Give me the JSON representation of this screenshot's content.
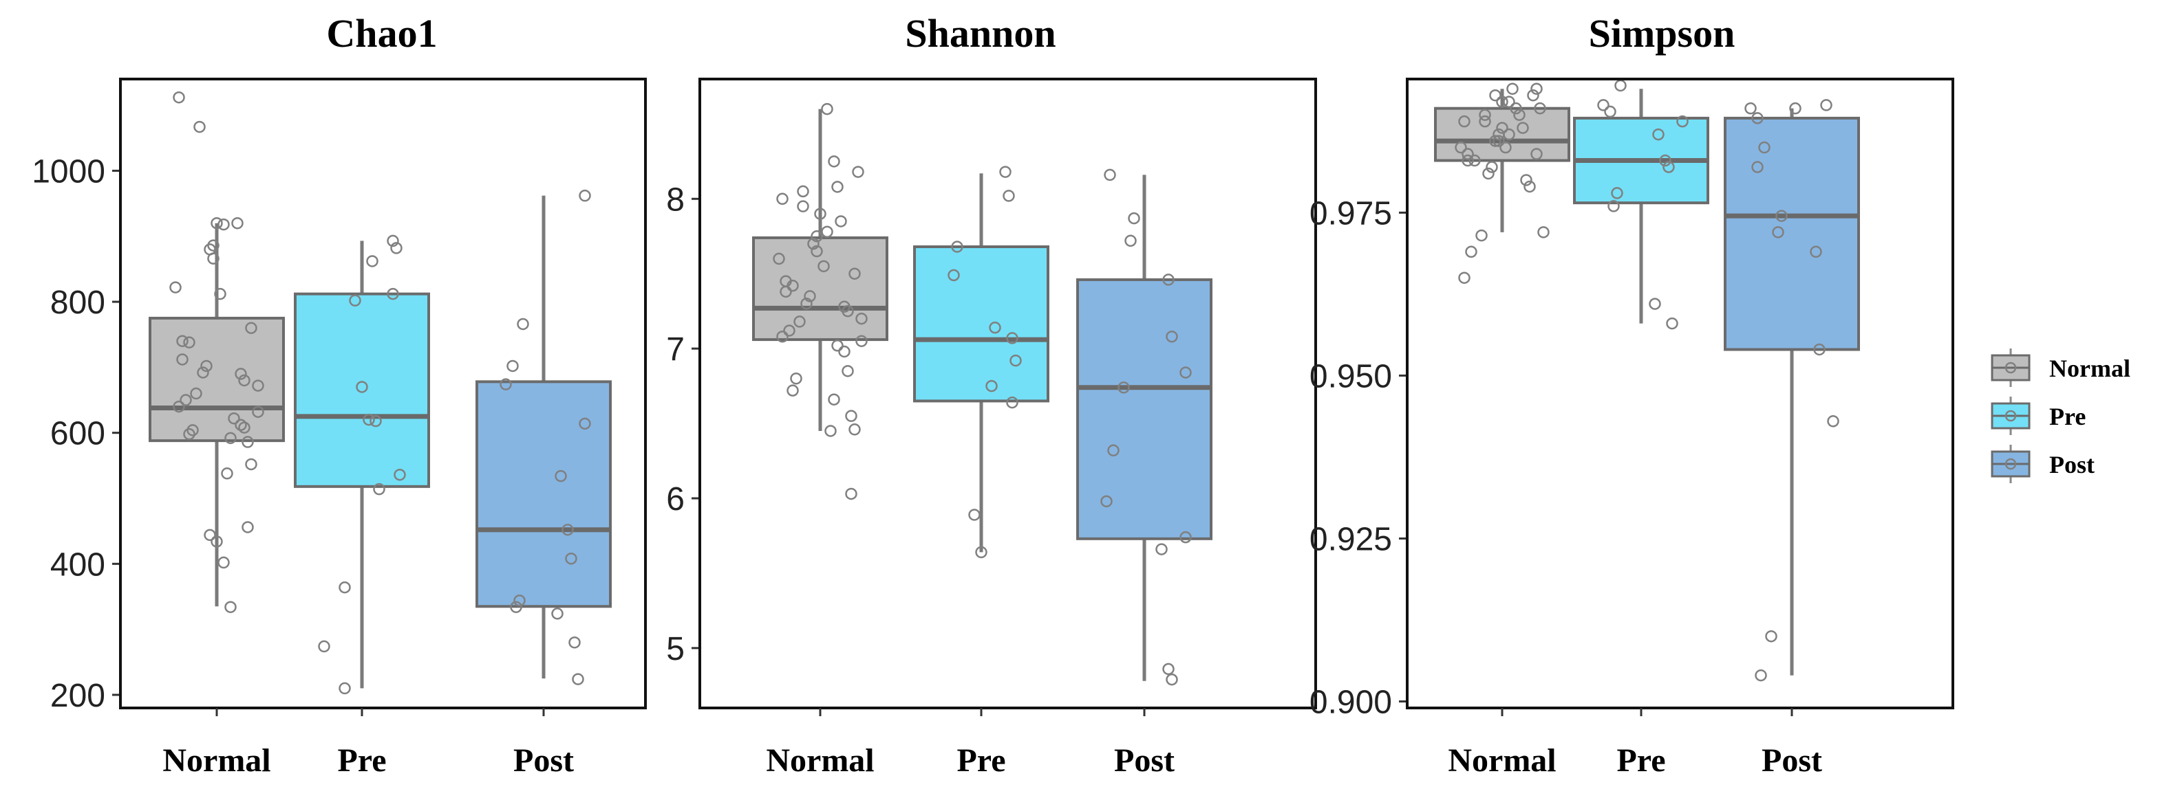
{
  "chart_data": [
    {
      "type": "box",
      "title": "Chao1",
      "categories": [
        "Normal",
        "Pre",
        "Post"
      ],
      "ylim": [
        180,
        1140
      ],
      "yticks": [
        200,
        400,
        600,
        800,
        1000
      ],
      "ytick_labels": [
        "200",
        "400",
        "600",
        "800",
        "1000"
      ],
      "grid": false,
      "boxes": [
        {
          "name": "Normal",
          "min": 335,
          "q1": 588,
          "median": 638,
          "q3": 775,
          "max": 920,
          "points": [
            1112,
            1067,
            920,
            920,
            918,
            886,
            880,
            866,
            822,
            812,
            760,
            740,
            738,
            712,
            702,
            692,
            690,
            680,
            672,
            660,
            650,
            640,
            632,
            622,
            612,
            608,
            604,
            598,
            592,
            586,
            552,
            538,
            456,
            444,
            434,
            402,
            334
          ]
        },
        {
          "name": "Pre",
          "min": 210,
          "q1": 518,
          "median": 625,
          "q3": 812,
          "max": 893,
          "points": [
            893,
            882,
            862,
            812,
            802,
            670,
            620,
            618,
            536,
            514,
            364,
            274,
            210
          ]
        },
        {
          "name": "Post",
          "min": 225,
          "q1": 335,
          "median": 452,
          "q3": 678,
          "max": 962,
          "points": [
            962,
            766,
            702,
            674,
            614,
            534,
            452,
            408,
            344,
            334,
            324,
            280,
            224
          ]
        }
      ]
    },
    {
      "type": "box",
      "title": "Shannon",
      "categories": [
        "Normal",
        "Pre",
        "Post"
      ],
      "ylim": [
        4.6,
        8.8
      ],
      "yticks": [
        5,
        6,
        7,
        8
      ],
      "ytick_labels": [
        "5",
        "6",
        "7",
        "8"
      ],
      "grid": false,
      "boxes": [
        {
          "name": "Normal",
          "min": 6.45,
          "q1": 7.06,
          "median": 7.27,
          "q3": 7.74,
          "max": 8.6,
          "points": [
            8.6,
            8.25,
            8.18,
            8.08,
            8.05,
            8.0,
            7.95,
            7.9,
            7.85,
            7.78,
            7.75,
            7.7,
            7.65,
            7.6,
            7.55,
            7.5,
            7.45,
            7.42,
            7.38,
            7.35,
            7.3,
            7.28,
            7.25,
            7.2,
            7.18,
            7.12,
            7.08,
            7.05,
            7.02,
            6.98,
            6.85,
            6.8,
            6.72,
            6.66,
            6.55,
            6.46,
            6.45,
            6.03
          ]
        },
        {
          "name": "Pre",
          "min": 5.64,
          "q1": 6.65,
          "median": 7.06,
          "q3": 7.68,
          "max": 8.17,
          "points": [
            8.18,
            8.02,
            7.68,
            7.49,
            7.14,
            7.07,
            6.92,
            6.75,
            6.64,
            5.89,
            5.64
          ]
        },
        {
          "name": "Post",
          "min": 4.78,
          "q1": 5.73,
          "median": 6.74,
          "q3": 7.46,
          "max": 8.16,
          "points": [
            8.16,
            7.87,
            7.72,
            7.46,
            7.08,
            6.84,
            6.74,
            6.32,
            5.98,
            5.74,
            5.66,
            4.86,
            4.79
          ]
        }
      ]
    },
    {
      "type": "box",
      "title": "Simpson",
      "categories": [
        "Normal",
        "Pre",
        "Post"
      ],
      "ylim": [
        0.899,
        0.9955
      ],
      "yticks": [
        0.9,
        0.925,
        0.95,
        0.975
      ],
      "ytick_labels": [
        "0.900",
        "0.925",
        "0.950",
        "0.975"
      ],
      "grid": false,
      "boxes": [
        {
          "name": "Normal",
          "min": 0.972,
          "q1": 0.983,
          "median": 0.986,
          "q3": 0.991,
          "max": 0.994,
          "points": [
            0.994,
            0.994,
            0.993,
            0.993,
            0.992,
            0.992,
            0.991,
            0.991,
            0.99,
            0.99,
            0.989,
            0.989,
            0.988,
            0.988,
            0.987,
            0.987,
            0.986,
            0.986,
            0.985,
            0.985,
            0.984,
            0.984,
            0.983,
            0.983,
            0.982,
            0.981,
            0.98,
            0.979,
            0.972,
            0.9715,
            0.969,
            0.965
          ]
        },
        {
          "name": "Pre",
          "min": 0.958,
          "q1": 0.9765,
          "median": 0.983,
          "q3": 0.9895,
          "max": 0.994,
          "points": [
            0.9945,
            0.9905,
            0.9915,
            0.989,
            0.987,
            0.983,
            0.982,
            0.978,
            0.976,
            0.961,
            0.958
          ]
        },
        {
          "name": "Post",
          "min": 0.904,
          "q1": 0.954,
          "median": 0.9745,
          "q3": 0.9895,
          "max": 0.991,
          "points": [
            0.991,
            0.991,
            0.9915,
            0.9895,
            0.985,
            0.982,
            0.9745,
            0.972,
            0.969,
            0.954,
            0.943,
            0.91,
            0.904
          ]
        }
      ]
    }
  ],
  "legend": {
    "placement": "right",
    "items": [
      {
        "label": "Normal",
        "color": "#bebebe"
      },
      {
        "label": "Pre",
        "color": "#73e0f7"
      },
      {
        "label": "Post",
        "color": "#86b5e2"
      }
    ]
  },
  "colors": {
    "Normal": "#bebebe",
    "Pre": "#73e0f7",
    "Post": "#86b5e2",
    "box_stroke": "#6b6b6b",
    "point_stroke": "#808080"
  }
}
